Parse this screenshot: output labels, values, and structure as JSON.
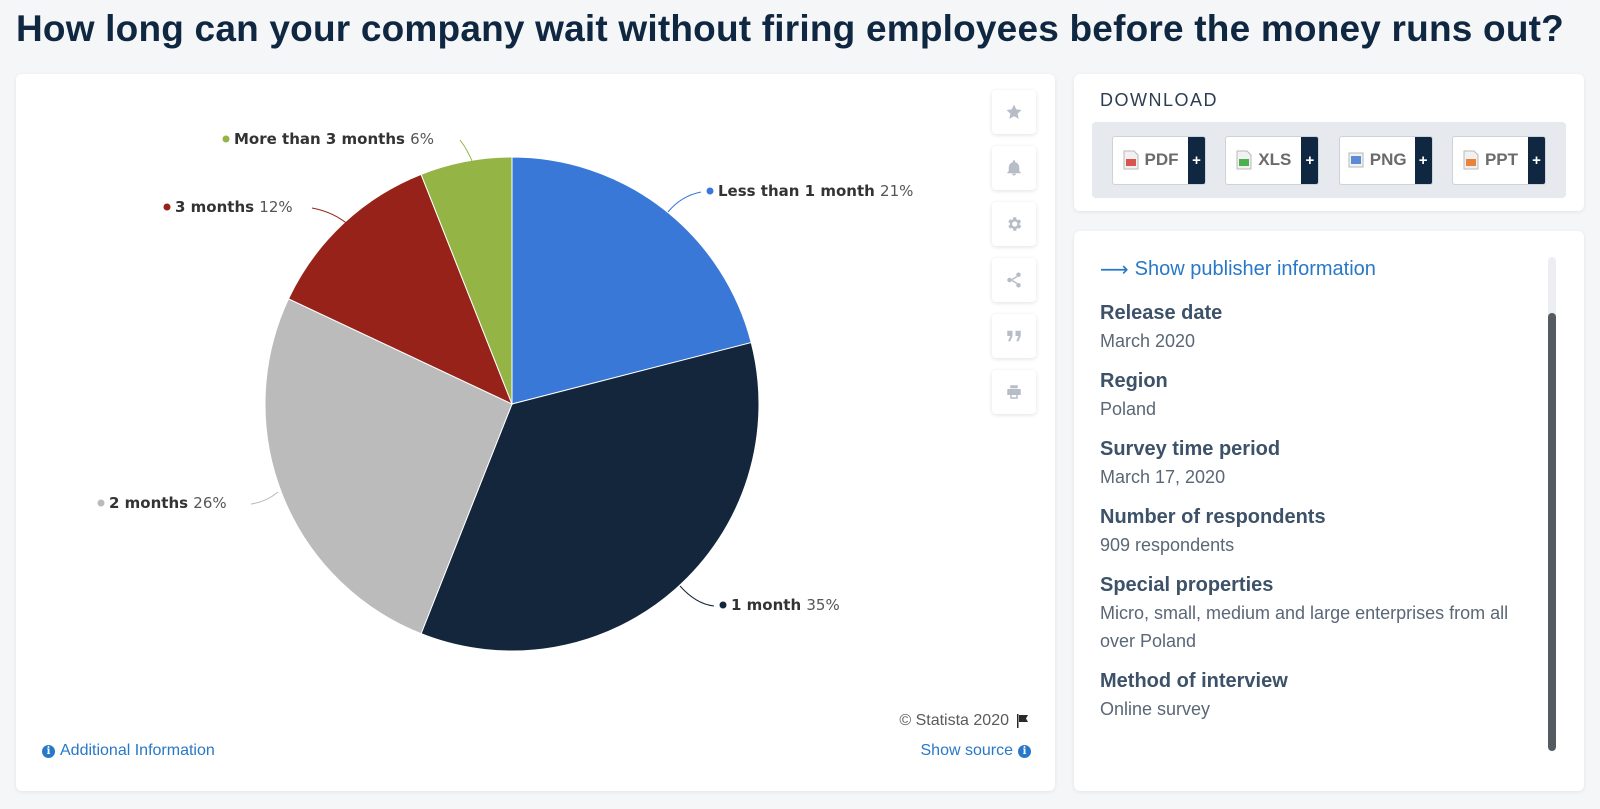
{
  "page": {
    "title": "How long can your company wait without firing employees before the money runs out?"
  },
  "chart_data": {
    "type": "pie",
    "unit": "%",
    "slices": [
      {
        "label": "Less than 1 month",
        "value": 21,
        "display": "21%",
        "color": "#3a78d8"
      },
      {
        "label": "1 month",
        "value": 35,
        "display": "35%",
        "color": "#13263b"
      },
      {
        "label": "2 months",
        "value": 26,
        "display": "26%",
        "color": "#bbbbbb"
      },
      {
        "label": "3 months",
        "value": 12,
        "display": "12%",
        "color": "#962219"
      },
      {
        "label": "More than 3 months",
        "value": 6,
        "display": "6%",
        "color": "#94b545"
      }
    ],
    "start_angle": "12 o'clock",
    "direction": "clockwise"
  },
  "chart_footer": {
    "copyright": "© Statista 2020",
    "additional_info": "Additional Information",
    "show_source": "Show source"
  },
  "toolbar": {
    "icons": [
      "star-icon",
      "bell-icon",
      "gear-icon",
      "share-icon",
      "quote-icon",
      "print-icon"
    ]
  },
  "download": {
    "title": "DOWNLOAD",
    "buttons": [
      {
        "label": "PDF",
        "color": "#d9534f"
      },
      {
        "label": "XLS",
        "color": "#4caf50"
      },
      {
        "label": "PNG",
        "color": "#5b8bd4"
      },
      {
        "label": "PPT",
        "color": "#e8833a"
      }
    ],
    "plus": "+"
  },
  "info": {
    "publisher_link": "Show publisher information",
    "items": [
      {
        "label": "Release date",
        "value": "March 2020"
      },
      {
        "label": "Region",
        "value": "Poland"
      },
      {
        "label": "Survey time period",
        "value": "March 17, 2020"
      },
      {
        "label": "Number of respondents",
        "value": "909 respondents"
      },
      {
        "label": "Special properties",
        "value": "Micro, small, medium and large enterprises from all over Poland"
      },
      {
        "label": "Method of interview",
        "value": "Online survey"
      }
    ]
  }
}
